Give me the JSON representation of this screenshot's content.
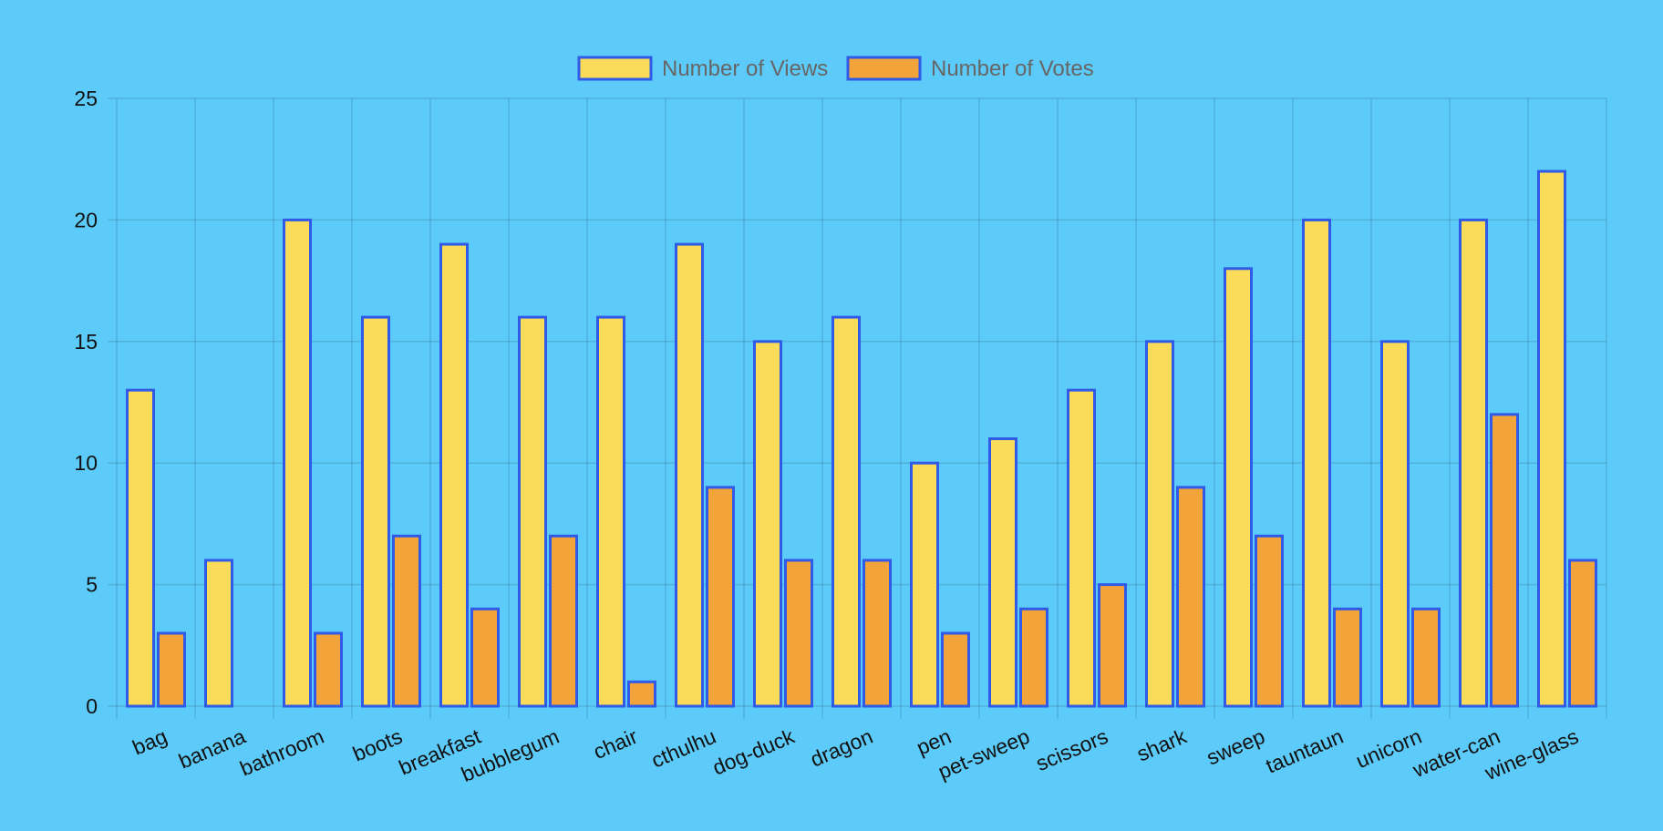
{
  "colors": {
    "background": "#5ccbfa",
    "views_fill": "#fadc5a",
    "votes_fill": "#f2a33a",
    "bar_border": "#2f5be8"
  },
  "chart_data": {
    "type": "bar",
    "categories": [
      "bag",
      "banana",
      "bathroom",
      "boots",
      "breakfast",
      "bubblegum",
      "chair",
      "cthulhu",
      "dog-duck",
      "dragon",
      "pen",
      "pet-sweep",
      "scissors",
      "shark",
      "sweep",
      "tauntaun",
      "unicorn",
      "water-can",
      "wine-glass"
    ],
    "series": [
      {
        "name": "Number of Views",
        "values": [
          13,
          6,
          20,
          16,
          19,
          16,
          16,
          19,
          15,
          16,
          10,
          11,
          13,
          15,
          18,
          20,
          15,
          20,
          22
        ]
      },
      {
        "name": "Number of Votes",
        "values": [
          3,
          0,
          3,
          7,
          4,
          7,
          1,
          9,
          6,
          6,
          3,
          4,
          5,
          9,
          7,
          4,
          4,
          12,
          6
        ]
      }
    ],
    "ylim": [
      0,
      25
    ],
    "yticks": [
      0,
      5,
      10,
      15,
      20,
      25
    ],
    "grid": true,
    "legend": "top-center"
  }
}
